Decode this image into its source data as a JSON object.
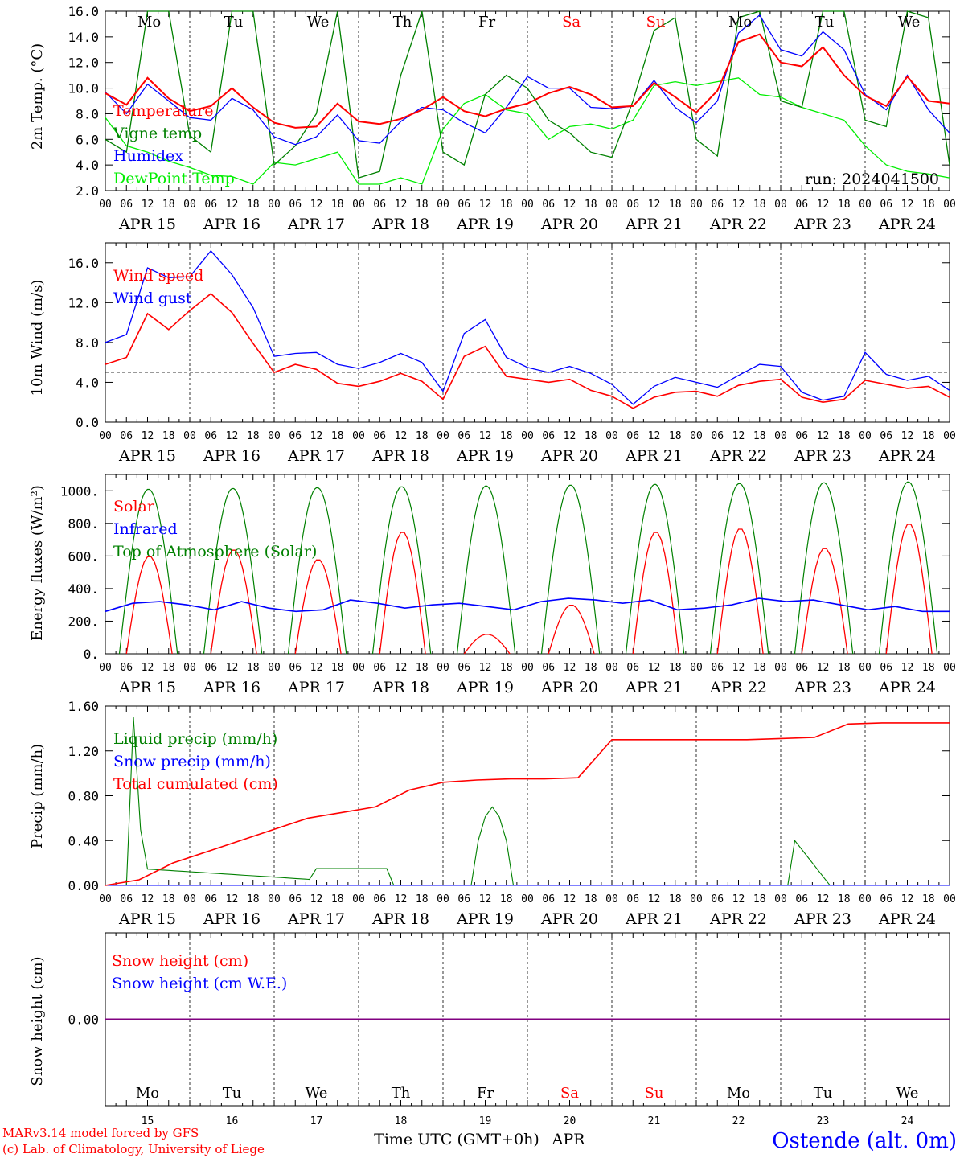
{
  "chart_data": [
    {
      "type": "line",
      "ylabel": "2m Temp. (°C)",
      "ylim": [
        2,
        16
      ],
      "yticks": [
        "2.0",
        "4.0",
        "6.0",
        "8.0",
        "10.0",
        "12.0",
        "14.0",
        "16.0"
      ],
      "annotation": "run: 2024041500",
      "x_hours": [
        0,
        6,
        12,
        18,
        24,
        30,
        36,
        42,
        48,
        54,
        60,
        66,
        72,
        78,
        84,
        90,
        96,
        102,
        108,
        114,
        120,
        126,
        132,
        138,
        144,
        150,
        156,
        162,
        168,
        174,
        180,
        186,
        192,
        198,
        204,
        210,
        216,
        222,
        228,
        234,
        240
      ],
      "series": [
        {
          "name": "Temperature",
          "color": "#ff0000",
          "values": [
            9.6,
            8.7,
            10.8,
            9.2,
            8.2,
            8.6,
            10.0,
            8.5,
            7.3,
            6.9,
            7.0,
            8.8,
            7.4,
            7.2,
            7.6,
            8.3,
            9.3,
            8.2,
            7.8,
            8.4,
            8.8,
            9.6,
            10.1,
            9.5,
            8.5,
            8.6,
            10.4,
            9.3,
            8.1,
            9.8,
            13.6,
            14.2,
            12.0,
            11.7,
            13.2,
            11.0,
            9.4,
            8.6,
            10.9,
            9.0,
            8.8
          ]
        },
        {
          "name": "Vigne temp",
          "color": "#008000",
          "values": [
            6.0,
            5.0,
            16.5,
            16.5,
            6.3,
            5.0,
            16.5,
            16.5,
            4.0,
            5.5,
            8.0,
            16.0,
            3.0,
            3.5,
            11.0,
            16.0,
            5.0,
            4.0,
            9.5,
            11.0,
            10.0,
            7.5,
            6.5,
            5.0,
            4.6,
            9.0,
            14.5,
            15.5,
            6.0,
            4.7,
            15.5,
            16.5,
            9.0,
            8.5,
            16.5,
            16.5,
            7.5,
            7.0,
            16.5,
            15.5,
            4.0
          ]
        },
        {
          "name": "Humidex",
          "color": "#0000ff",
          "values": [
            9.7,
            8.0,
            10.3,
            9.0,
            7.7,
            7.5,
            9.2,
            8.3,
            6.2,
            5.6,
            6.2,
            7.9,
            5.9,
            5.7,
            7.4,
            8.5,
            8.3,
            7.3,
            6.5,
            8.5,
            10.9,
            10.0,
            10.0,
            8.5,
            8.4,
            8.6,
            10.6,
            8.5,
            7.3,
            9.0,
            14.3,
            15.7,
            13.0,
            12.5,
            14.4,
            13.0,
            9.5,
            8.3,
            11.0,
            8.3,
            6.5
          ]
        },
        {
          "name": "DewPoint Temp",
          "color": "#00ee00",
          "values": [
            7.7,
            5.5,
            5.0,
            4.3,
            3.8,
            3.2,
            3.1,
            2.5,
            4.2,
            4.0,
            4.5,
            5.0,
            2.5,
            2.5,
            3.0,
            2.5,
            6.8,
            8.8,
            9.5,
            8.3,
            8.0,
            6.0,
            7.0,
            7.2,
            6.8,
            7.5,
            10.2,
            10.5,
            10.2,
            10.5,
            10.8,
            9.5,
            9.3,
            8.5,
            8.0,
            7.5,
            5.5,
            4.0,
            3.5,
            3.3,
            3.0
          ]
        }
      ]
    },
    {
      "type": "line",
      "ylabel": "10m Wind (m/s)",
      "ylim": [
        0,
        18
      ],
      "yticks": [
        "0.0",
        "4.0",
        "8.0",
        "12.0",
        "16.0"
      ],
      "reference_line": 5.0,
      "x_hours": [
        0,
        6,
        12,
        18,
        24,
        30,
        36,
        42,
        48,
        54,
        60,
        66,
        72,
        78,
        84,
        90,
        96,
        102,
        108,
        114,
        120,
        126,
        132,
        138,
        144,
        150,
        156,
        162,
        168,
        174,
        180,
        186,
        192,
        198,
        204,
        210,
        216,
        222,
        228,
        234,
        240
      ],
      "series": [
        {
          "name": "Wind speed",
          "color": "#ff0000",
          "values": [
            5.8,
            6.5,
            10.9,
            9.3,
            11.2,
            12.9,
            11.0,
            7.9,
            5.0,
            5.8,
            5.3,
            3.9,
            3.6,
            4.1,
            4.9,
            4.1,
            2.3,
            6.6,
            7.6,
            4.6,
            4.3,
            4.0,
            4.3,
            3.2,
            2.6,
            1.4,
            2.5,
            3.0,
            3.1,
            2.6,
            3.7,
            4.1,
            4.3,
            2.5,
            2.0,
            2.3,
            4.2,
            3.8,
            3.4,
            3.6,
            2.5
          ]
        },
        {
          "name": "Wind gust",
          "color": "#0000ff",
          "values": [
            8.0,
            8.8,
            15.5,
            14.5,
            14.6,
            17.2,
            14.8,
            11.5,
            6.6,
            6.9,
            7.0,
            5.8,
            5.4,
            6.0,
            6.9,
            6.0,
            3.1,
            8.9,
            10.3,
            6.5,
            5.5,
            5.0,
            5.6,
            4.9,
            3.8,
            1.8,
            3.6,
            4.5,
            4.0,
            3.5,
            4.7,
            5.8,
            5.6,
            3.0,
            2.2,
            2.6,
            7.0,
            4.8,
            4.2,
            4.6,
            3.2
          ]
        }
      ]
    },
    {
      "type": "line",
      "ylabel": "Energy fluxes (W/m²)",
      "ylim": [
        0,
        1100
      ],
      "yticks": [
        "0.",
        "200.",
        "400.",
        "600.",
        "800.",
        "1000."
      ],
      "series": [
        {
          "name": "Solar",
          "color": "#ff0000",
          "values_daily_peak": [
            600,
            640,
            580,
            750,
            120,
            300,
            750,
            770,
            650,
            800
          ]
        },
        {
          "name": "Infrared",
          "color": "#0000ff",
          "values": [
            260,
            310,
            320,
            300,
            270,
            320,
            280,
            260,
            270,
            330,
            310,
            280,
            300,
            310,
            290,
            270,
            320,
            340,
            330,
            310,
            330,
            270,
            280,
            300,
            340,
            320,
            330,
            300,
            270,
            290,
            260,
            260
          ]
        },
        {
          "name": "Top of Atmosphere (Solar)",
          "color": "#008000",
          "values_daily_peak": [
            1010,
            1015,
            1020,
            1025,
            1030,
            1035,
            1040,
            1045,
            1050,
            1055
          ]
        }
      ]
    },
    {
      "type": "line",
      "ylabel": "Precip (mm/h)",
      "ylim": [
        0,
        1.6
      ],
      "yticks": [
        "0.00",
        "0.40",
        "0.80",
        "1.20",
        "1.60"
      ],
      "series": [
        {
          "name": "Liquid precip (mm/h)",
          "color": "#008000"
        },
        {
          "name": "Snow precip (mm/h)",
          "color": "#0000ff"
        },
        {
          "name": "Total cumulated (cm)",
          "color": "#ff0000",
          "values": [
            0.0,
            0.05,
            0.2,
            0.3,
            0.4,
            0.5,
            0.6,
            0.65,
            0.7,
            0.85,
            0.92,
            0.94,
            0.95,
            0.95,
            0.96,
            1.3,
            1.3,
            1.3,
            1.3,
            1.3,
            1.31,
            1.32,
            1.44,
            1.45,
            1.45,
            1.45
          ]
        }
      ]
    },
    {
      "type": "line",
      "ylabel": "Snow height (cm)",
      "yticks": [
        "0.00"
      ],
      "series": [
        {
          "name": "Snow height (cm)",
          "color": "#ff0000",
          "values": [
            0.0,
            0.0
          ]
        },
        {
          "name": "Snow height (cm W.E.)",
          "color": "#0000ff",
          "values": [
            0.0,
            0.0
          ]
        }
      ]
    }
  ],
  "x_axis": {
    "hour_labels": [
      "00",
      "06",
      "12",
      "18"
    ],
    "final_hour_label": "00",
    "dates": [
      "APR 15",
      "APR 16",
      "APR 17",
      "APR 18",
      "APR 19",
      "APR 20",
      "APR 21",
      "APR 22",
      "APR 23",
      "APR 24"
    ],
    "day_numbers": [
      "15",
      "16",
      "17",
      "18",
      "19",
      "20",
      "21",
      "22",
      "23",
      "24"
    ],
    "weekdays": [
      "Mo",
      "Tu",
      "We",
      "Th",
      "Fr",
      "Sa",
      "Su",
      "Mo",
      "Tu",
      "We"
    ],
    "weekend_flags": [
      false,
      false,
      false,
      false,
      false,
      true,
      true,
      false,
      false,
      false
    ],
    "xlabel": "Time UTC (GMT+0h)",
    "month": "APR"
  },
  "footer": {
    "credit_line1": "MARv3.14 model forced by GFS",
    "credit_line2": "(c) Lab. of Climatology, University of Liege",
    "station": "Ostende (alt. 0m)"
  },
  "colors": {
    "red": "#ff0000",
    "green": "#008000",
    "blue": "#0000ff",
    "lightgreen": "#00ee00",
    "purple": "#800080"
  }
}
